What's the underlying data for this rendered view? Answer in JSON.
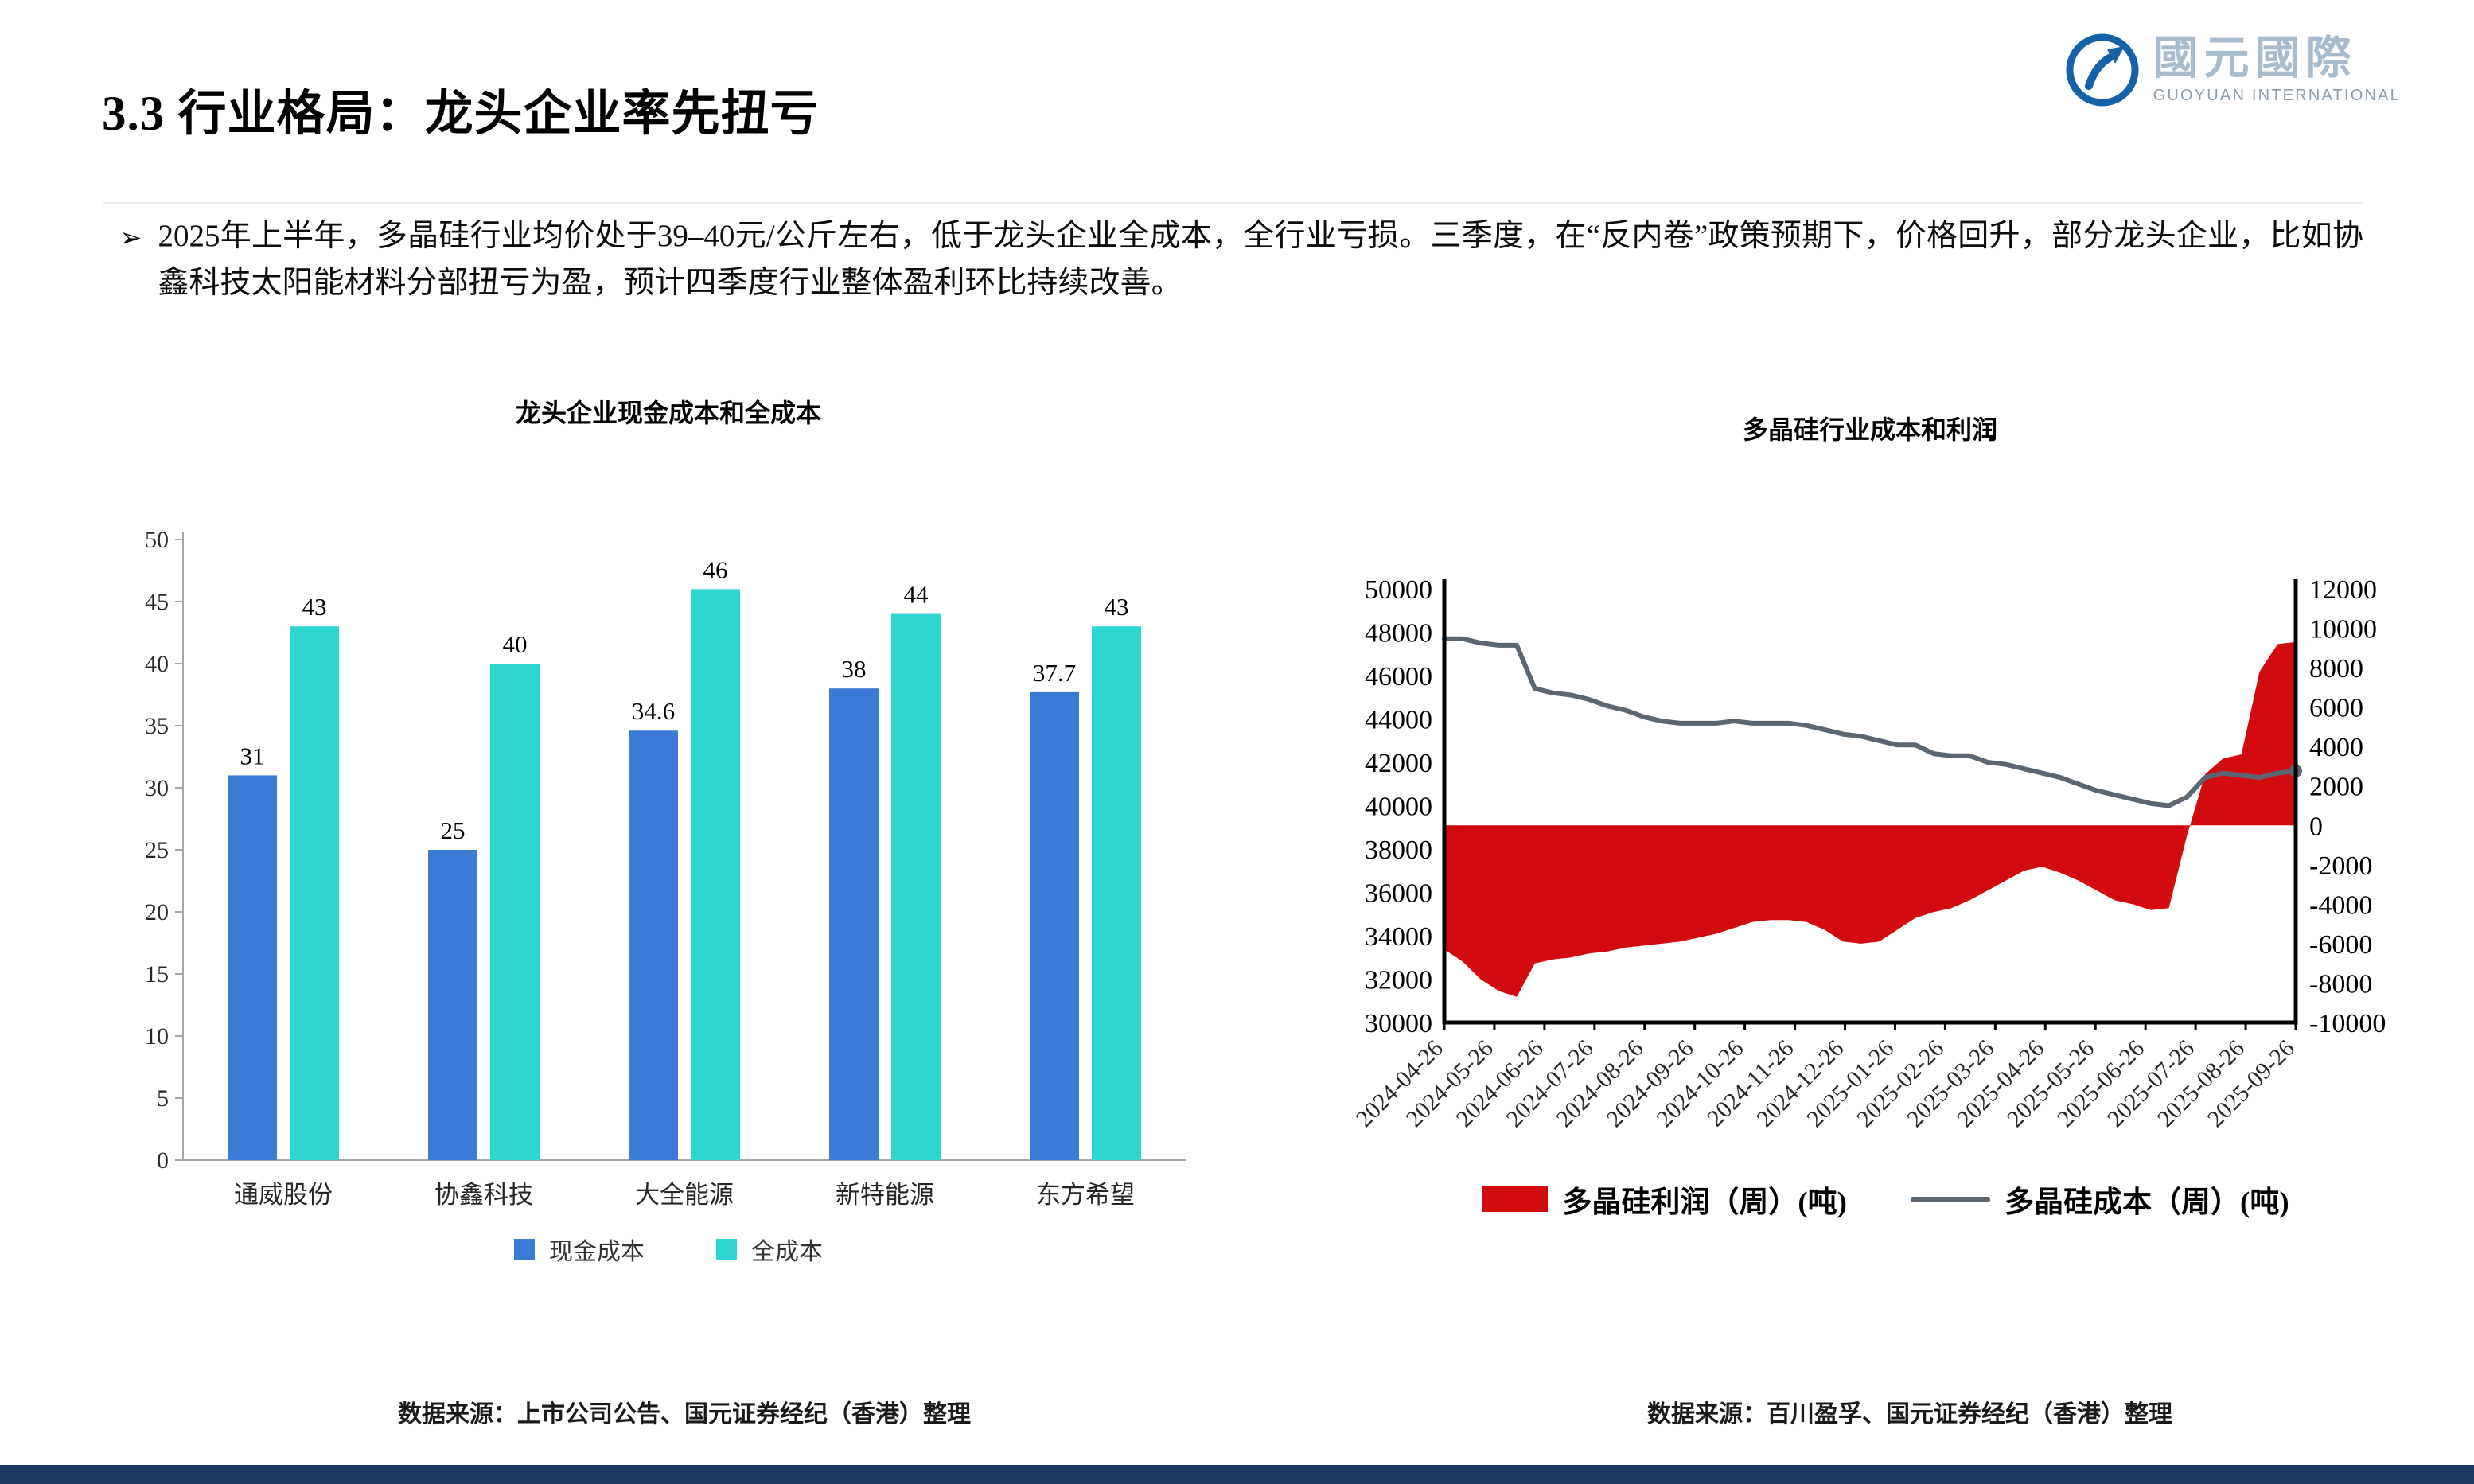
{
  "slide": {
    "title": "3.3 行业格局：龙头企业率先扭亏",
    "bullet_marker": "➢",
    "bullet": "2025年上半年，多晶硅行业均价处于39–40元/公斤左右，低于龙头企业全成本，全行业亏损。三季度，在“反内卷”政策预期下，价格回升，部分龙头企业，比如协鑫科技太阳能材料分部扭亏为盈，预计四季度行业整体盈利环比持续改善。"
  },
  "logo": {
    "cn": "國元國際",
    "en": "GUOYUAN INTERNATIONAL"
  },
  "footer_color": "#1f3864",
  "chart_data": [
    {
      "type": "bar",
      "title": "龙头企业现金成本和全成本",
      "categories": [
        "通威股份",
        "协鑫科技",
        "大全能源",
        "新特能源",
        "东方希望"
      ],
      "series": [
        {
          "name": "现金成本",
          "color": "#3a7cd5",
          "values": [
            31,
            25,
            34.6,
            38,
            37.7
          ]
        },
        {
          "name": "全成本",
          "color": "#2ed6d0",
          "values": [
            43,
            40,
            46,
            44,
            43
          ]
        }
      ],
      "ylim": [
        0,
        50
      ],
      "ytick": 5,
      "grid": false,
      "legend_position": "bottom",
      "source": "数据来源：上市公司公告、国元证券经纪（香港）整理"
    },
    {
      "type": "area+line",
      "title": "多晶硅行业成本和利润",
      "x_labels": [
        "2024-04-26",
        "2024-05-26",
        "2024-06-26",
        "2024-07-26",
        "2024-08-26",
        "2024-09-26",
        "2024-10-26",
        "2024-11-26",
        "2024-12-26",
        "2025-01-26",
        "2025-02-26",
        "2025-03-26",
        "2025-04-26",
        "2025-05-26",
        "2025-06-26",
        "2025-07-26",
        "2025-08-26",
        "2025-09-26"
      ],
      "left_axis": {
        "min": 30000,
        "max": 50000,
        "step": 2000
      },
      "right_axis": {
        "min": -10000,
        "max": 12000,
        "step": 2000
      },
      "series": [
        {
          "name": "多晶硅利润（周）(吨)",
          "type": "area",
          "axis": "right",
          "color": "#d20b0e",
          "values": [
            -6300,
            -6900,
            -7800,
            -8400,
            -8700,
            -7000,
            -6800,
            -6700,
            -6500,
            -6400,
            -6200,
            -6100,
            -6000,
            -5900,
            -5700,
            -5500,
            -5200,
            -4900,
            -4800,
            -4800,
            -4900,
            -5300,
            -5900,
            -6000,
            -5900,
            -5300,
            -4700,
            -4400,
            -4200,
            -3800,
            -3300,
            -2800,
            -2300,
            -2100,
            -2400,
            -2800,
            -3300,
            -3800,
            -4000,
            -4300,
            -4200,
            -500,
            2600,
            3400,
            3600,
            7800,
            9200,
            9300
          ]
        },
        {
          "name": "多晶硅成本（周）(吨)",
          "type": "line",
          "axis": "left",
          "color": "#5b6670",
          "values": [
            47700,
            47700,
            47500,
            47400,
            47400,
            45400,
            45200,
            45100,
            44900,
            44600,
            44400,
            44100,
            43900,
            43800,
            43800,
            43800,
            43900,
            43800,
            43800,
            43800,
            43700,
            43500,
            43300,
            43200,
            43000,
            42800,
            42800,
            42400,
            42300,
            42300,
            42000,
            41900,
            41700,
            41500,
            41300,
            41000,
            40700,
            40500,
            40300,
            40100,
            40000,
            40400,
            41300,
            41500,
            41400,
            41300,
            41500,
            41600
          ]
        }
      ],
      "legend_position": "bottom",
      "grid": false,
      "source": "数据来源：百川盈孚、国元证券经纪（香港）整理"
    }
  ]
}
